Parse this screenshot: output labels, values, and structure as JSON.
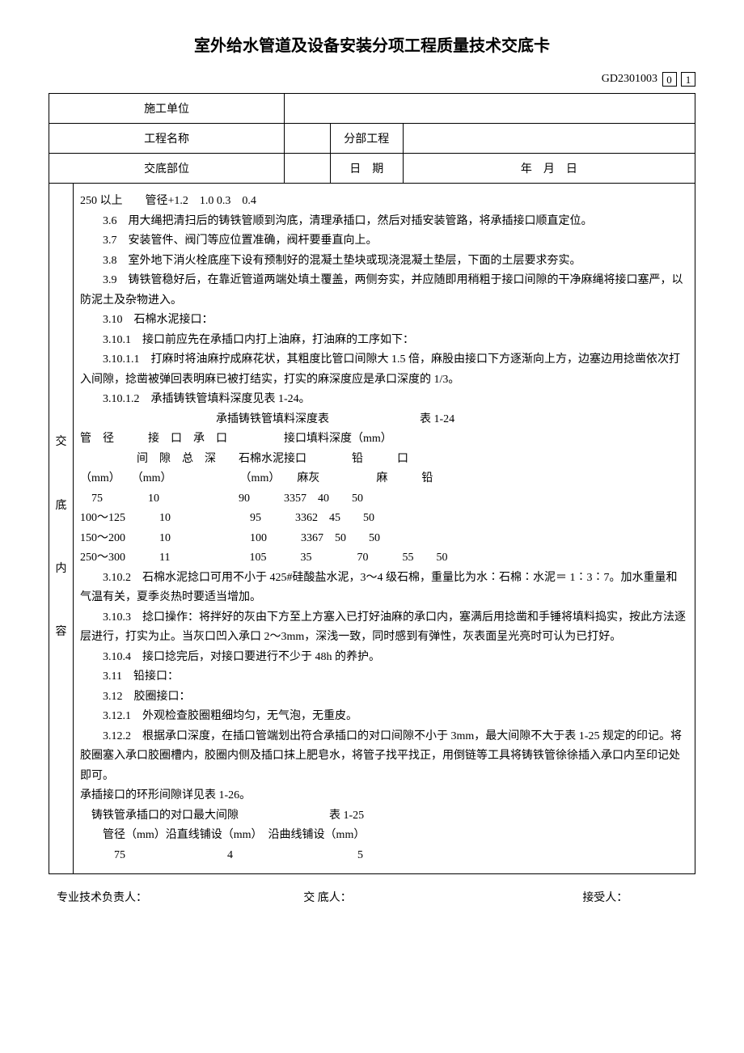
{
  "title": "室外给水管道及设备安装分项工程质量技术交底卡",
  "doc_code": "GD2301003",
  "code_box1": "0",
  "code_box2": "1",
  "header": {
    "row1_label": "施工单位",
    "row1_value": "",
    "row2_label": "工程名称",
    "row2_value": "",
    "row2_right_label": "分部工程",
    "row2_right_value": "",
    "row3_label": "交底部位",
    "row3_value": "",
    "row3_right_label": "日　期",
    "row3_right_value": "年　月　日"
  },
  "side_label": "交\n\n底\n\n内\n\n容",
  "content": {
    "l0": "250 以上　　管径+1.2　1.0 0.3　0.4",
    "l1": "3.6　用大绳把清扫后的铸铁管顺到沟底，清理承插口，然后对插安装管路，将承插接口顺直定位。",
    "l2": "3.7　安装管件、阀门等应位置准确，阀杆要垂直向上。",
    "l3": "3.8　室外地下消火栓底座下设有预制好的混凝土垫块或现浇混凝土垫层，下面的土层要求夯实。",
    "l4": "3.9　铸铁管稳好后，在靠近管道两端处填土覆盖，两侧夯实，并应随即用稍粗于接口间隙的干净麻绳将接口塞严，以防泥土及杂物进入。",
    "l5": "3.10　石棉水泥接口：",
    "l6": "3.10.1　接口前应先在承插口内打上油麻，打油麻的工序如下：",
    "l7": "3.10.1.1　打麻时将油麻拧成麻花状，其粗度比管口间隙大 1.5 倍，麻股由接口下方逐渐向上方，边塞边用捻凿依次打入间隙，捻凿被弹回表明麻已被打结实，打实的麻深度应是承口深度的 1/3。",
    "l8": "3.10.1.2　承插铸铁管填料深度见表 1-24。",
    "tbl1_title": "承插铸铁管填料深度表　　　　　　　　表 1-24",
    "tbl1_h1": "管　径　　　接　口　承　口　　　　　接口填料深度（mm）",
    "tbl1_h2": "　　　　　间　隙　总　深　　石棉水泥接口　　　　铅　　　口",
    "tbl1_h3": "（mm）　　（mm）　　　　　　　（mm）　　麻灰　　　　　麻　　　铅",
    "tbl1_r1": "　75　　　　10　　　　　　　90　　　3357　40　　50",
    "tbl1_r2": "100～125　　　10　　　　　　　95　　　3362　45　　50",
    "tbl1_r3": "150～200　　　10　　　　　　　100　　　3367　50　　50",
    "tbl1_r4": "250～300　　　11　　　　　　　105　　　35　　　　70　　　55　　50",
    "l9": "3.10.2　石棉水泥捻口可用不小于 425#硅酸盐水泥，3～4 级石棉，重量比为水∶石棉∶水泥＝ 1∶3∶7。加水重量和气温有关，夏季炎热时要适当增加。",
    "l10": "3.10.3　捻口操作：将拌好的灰由下方至上方塞入已打好油麻的承口内，塞满后用捻凿和手锤将填料捣实，按此方法逐层进行，打实为止。当灰口凹入承口 2～3mm，深浅一致，同时感到有弹性，灰表面呈光亮时可认为已打好。",
    "l11": "3.10.4　接口捻完后，对接口要进行不少于 48h 的养护。",
    "l12": "3.11　铅接口：",
    "l13": "3.12　胶圈接口：",
    "l14": "3.12.1　外观检查胶圈粗细均匀，无气泡，无重皮。",
    "l15": "3.12.2　根据承口深度，在插口管端划出符合承插口的对口间隙不小于 3mm，最大间隙不大于表 1-25 规定的印记。将胶圈塞入承口胶圈槽内，胶圈内侧及插口抹上肥皂水，将管子找平找正，用倒链等工具将铸铁管徐徐插入承口内至印记处即可。",
    "l16": "承插接口的环形间隙详见表 1-26。",
    "tbl2_title": "　铸铁管承插口的对口最大间隙　　　　　　　　表 1-25",
    "tbl2_h": "　　管径（mm）沿直线铺设（mm）　沿曲线铺设（mm）",
    "tbl2_r1": "　　　75　　　　　　　　　4　　　　　　　　　　　5"
  },
  "footer": {
    "f1": "专业技术负责人：",
    "f2": "交 底人：",
    "f3": "接受人："
  }
}
